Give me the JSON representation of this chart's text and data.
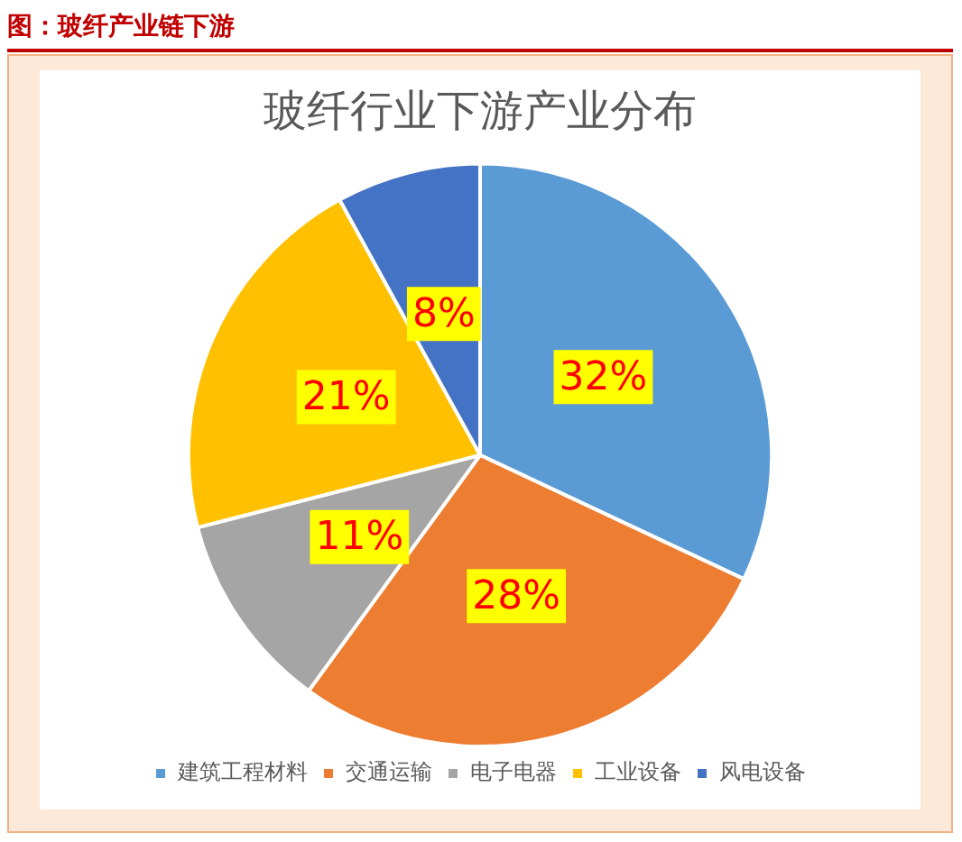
{
  "chart_data": {
    "type": "pie",
    "title": "玻纤行业下游产业分布",
    "annotations": [
      "图：玻纤产业链下游"
    ],
    "categories": [
      "建筑工程材料",
      "交通运输",
      "电子电器",
      "工业设备",
      "风电设备"
    ],
    "values": [
      32,
      28,
      11,
      21,
      8
    ],
    "colors": [
      "#5b9bd5",
      "#ed7d31",
      "#a5a5a5",
      "#ffc000",
      "#4472c4"
    ],
    "value_labels": [
      "32%",
      "28%",
      "11%",
      "21%",
      "8%"
    ],
    "legend": "bottom"
  }
}
